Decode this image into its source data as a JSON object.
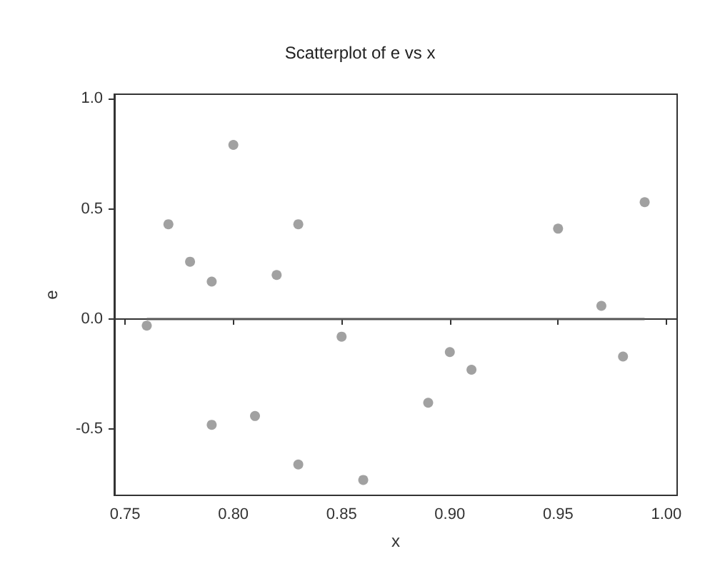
{
  "chart_data": {
    "type": "scatter",
    "title": "Scatterplot of e vs x",
    "xlabel": "x",
    "ylabel": "e",
    "xlim": [
      0.745,
      1.005
    ],
    "xticks": [
      0.75,
      {
        "value": 0.8,
        "label": "0.80"
      },
      0.85,
      {
        "value": 0.9,
        "label": "0.90"
      },
      0.95,
      {
        "value": 1,
        "label": "1.00"
      }
    ],
    "ylim": [
      -0.8,
      1.02
    ],
    "yticks": [
      -0.5,
      {
        "value": 0,
        "label": "0.0"
      },
      0.5,
      {
        "value": 1,
        "label": "1.0"
      }
    ],
    "series": [
      {
        "color": "#8a8a8a",
        "x": [
          0.76,
          0.77,
          0.78,
          0.79,
          0.79,
          0.8,
          0.81,
          0.82,
          0.83,
          0.83,
          0.85,
          0.86,
          0.89,
          0.9,
          0.91,
          0.95,
          0.97,
          0.98,
          0.99
        ],
        "values": [
          -0.03,
          0.43,
          0.26,
          0.17,
          -0.48,
          0.79,
          -0.44,
          0.2,
          0.43,
          -0.66,
          -0.08,
          -0.73,
          -0.38,
          -0.15,
          -0.23,
          0.41,
          0.06,
          -0.17,
          0.53
        ]
      },
      {
        "type": "line",
        "color": "#555555",
        "x": [
          0.76,
          0.99
        ],
        "values": [
          0,
          0
        ]
      }
    ]
  }
}
